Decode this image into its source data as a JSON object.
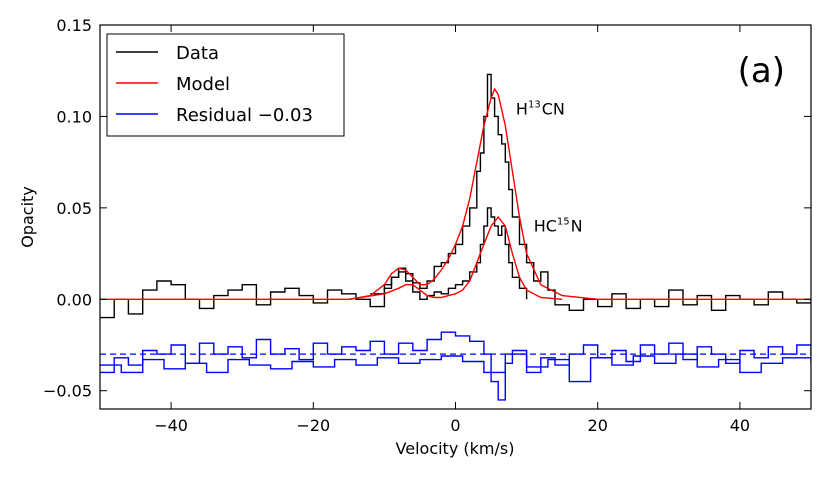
{
  "chart_data": {
    "type": "line",
    "xlabel": "Velocity (km/s)",
    "ylabel": "Opacity",
    "xlim": [
      -50,
      50
    ],
    "ylim": [
      -0.06,
      0.15
    ],
    "xticks": [
      -40,
      -20,
      0,
      20,
      40
    ],
    "xtick_labels": [
      "−40",
      "−20",
      "0",
      "20",
      "40"
    ],
    "yticks": [
      -0.05,
      0.0,
      0.05,
      0.1,
      0.15
    ],
    "ytick_labels": [
      "−0.05",
      "0.00",
      "0.05",
      "0.10",
      "0.15"
    ],
    "legend_position": "top-left",
    "grid": false,
    "panel_label": "(a)",
    "annotations": [
      {
        "main": "H",
        "sup": "13",
        "rest": "CN",
        "x": 8.5,
        "y": 0.101
      },
      {
        "main": "HC",
        "sup": "15",
        "rest": "N",
        "x": 11,
        "y": 0.037
      }
    ],
    "baseline": {
      "y": -0.03,
      "color": "#0000ff",
      "style": "dashed"
    },
    "series": [
      {
        "name": "Data",
        "color": "#000000",
        "style": "step",
        "x": [
          -50,
          -48,
          -46,
          -44,
          -42,
          -40,
          -38,
          -36,
          -34,
          -32,
          -30,
          -28,
          -26,
          -24,
          -22,
          -20,
          -18,
          -16,
          -14,
          -12,
          -10,
          -9,
          -8,
          -7,
          -6,
          -5,
          -4,
          -3,
          -2,
          -1,
          0,
          1,
          2,
          3,
          3.5,
          4,
          4.5,
          5,
          5.5,
          6,
          6.5,
          7,
          7.5,
          8,
          9,
          10,
          11,
          12,
          13,
          14,
          16,
          18,
          20,
          22,
          24,
          26,
          28,
          30,
          32,
          34,
          36,
          38,
          40,
          42,
          44,
          46,
          48,
          50
        ],
        "y": [
          -0.01,
          0.0,
          -0.008,
          0.005,
          0.01,
          0.008,
          0.0,
          -0.005,
          0.002,
          0.005,
          0.008,
          -0.003,
          0.004,
          0.006,
          0.002,
          -0.002,
          0.005,
          0.003,
          0.0,
          -0.004,
          0.006,
          0.012,
          0.017,
          0.014,
          0.009,
          0.006,
          0.01,
          0.018,
          0.02,
          0.025,
          0.03,
          0.04,
          0.05,
          0.07,
          0.08,
          0.1,
          0.123,
          0.11,
          0.1,
          0.09,
          0.085,
          0.075,
          0.06,
          0.045,
          0.03,
          0.02,
          0.01,
          0.015,
          0.005,
          -0.003,
          -0.006,
          0.0,
          -0.004,
          0.003,
          -0.005,
          0.0,
          -0.004,
          0.005,
          -0.003,
          0.002,
          -0.006,
          0.002,
          0.0,
          -0.003,
          0.004,
          0.0,
          -0.002,
          0.0
        ]
      },
      {
        "name": "Data",
        "color": "#000000",
        "style": "step",
        "x": [
          -12,
          -10,
          -9,
          -8,
          -7,
          -6,
          -5,
          -4,
          -3,
          -2,
          -1,
          0,
          1,
          2,
          3,
          3.5,
          4,
          4.5,
          5,
          5.5,
          6,
          6.5,
          7,
          7.5,
          8,
          9,
          10
        ],
        "y": [
          0.003,
          0.008,
          0.012,
          0.015,
          0.01,
          0.004,
          0.0,
          0.002,
          0.004,
          0.003,
          0.006,
          0.008,
          0.01,
          0.015,
          0.02,
          0.03,
          0.04,
          0.05,
          0.045,
          0.04,
          0.035,
          0.04,
          0.03,
          0.02,
          0.012,
          0.006,
          0.0
        ]
      },
      {
        "name": "Model",
        "color": "#ff0000",
        "style": "line",
        "x": [
          -50,
          -15,
          -12,
          -10,
          -9,
          -8,
          -7,
          -6,
          -5,
          -4,
          -3,
          -2,
          -1,
          0,
          1,
          2,
          3,
          4,
          5,
          5.5,
          6,
          7,
          8,
          9,
          10,
          12,
          15,
          20,
          50
        ],
        "y": [
          0.0,
          0.0,
          0.002,
          0.008,
          0.014,
          0.017,
          0.016,
          0.012,
          0.008,
          0.008,
          0.011,
          0.016,
          0.022,
          0.03,
          0.04,
          0.055,
          0.075,
          0.095,
          0.11,
          0.115,
          0.112,
          0.095,
          0.07,
          0.045,
          0.025,
          0.008,
          0.002,
          0.0,
          0.0
        ]
      },
      {
        "name": "Model",
        "color": "#ff0000",
        "style": "line",
        "x": [
          -15,
          -10,
          -8,
          -7,
          -6,
          -5,
          -4,
          -3,
          -2,
          -1,
          0,
          1,
          2,
          3,
          4,
          5,
          6,
          7,
          8,
          9,
          10,
          12,
          15
        ],
        "y": [
          0.0,
          0.003,
          0.006,
          0.008,
          0.008,
          0.005,
          0.002,
          0.001,
          0.001,
          0.002,
          0.003,
          0.005,
          0.01,
          0.02,
          0.03,
          0.04,
          0.045,
          0.04,
          0.025,
          0.012,
          0.005,
          0.001,
          0.0
        ]
      },
      {
        "name": "Residual −0.03",
        "color": "#0000ff",
        "style": "step",
        "x": [
          -50,
          -48,
          -46,
          -44,
          -42,
          -40,
          -38,
          -36,
          -34,
          -32,
          -30,
          -28,
          -26,
          -24,
          -22,
          -20,
          -18,
          -16,
          -14,
          -12,
          -10,
          -8,
          -6,
          -4,
          -2,
          0,
          2,
          4,
          5,
          6,
          7,
          8,
          10,
          12,
          14,
          16,
          18,
          20,
          22,
          24,
          26,
          28,
          30,
          32,
          34,
          36,
          38,
          40,
          42,
          44,
          46,
          48,
          50
        ],
        "y": [
          -0.04,
          -0.032,
          -0.036,
          -0.028,
          -0.03,
          -0.025,
          -0.035,
          -0.024,
          -0.03,
          -0.026,
          -0.032,
          -0.022,
          -0.03,
          -0.027,
          -0.033,
          -0.024,
          -0.03,
          -0.026,
          -0.028,
          -0.023,
          -0.03,
          -0.024,
          -0.028,
          -0.022,
          -0.018,
          -0.02,
          -0.023,
          -0.03,
          -0.045,
          -0.055,
          -0.035,
          -0.028,
          -0.04,
          -0.032,
          -0.036,
          -0.03,
          -0.025,
          -0.032,
          -0.028,
          -0.034,
          -0.025,
          -0.03,
          -0.024,
          -0.033,
          -0.026,
          -0.03,
          -0.035,
          -0.028,
          -0.032,
          -0.026,
          -0.03,
          -0.025,
          -0.03
        ]
      },
      {
        "name": "Residual −0.03",
        "color": "#0000ff",
        "style": "step",
        "x": [
          -50,
          -47,
          -44,
          -41,
          -38,
          -35,
          -32,
          -29,
          -26,
          -23,
          -20,
          -17,
          -14,
          -11,
          -8,
          -5,
          -2,
          1,
          4,
          7,
          10,
          13,
          16,
          19,
          22,
          25,
          28,
          31,
          34,
          37,
          40,
          43,
          46,
          50
        ],
        "y": [
          -0.036,
          -0.04,
          -0.033,
          -0.038,
          -0.035,
          -0.04,
          -0.033,
          -0.036,
          -0.038,
          -0.034,
          -0.037,
          -0.033,
          -0.036,
          -0.032,
          -0.035,
          -0.033,
          -0.031,
          -0.034,
          -0.04,
          -0.03,
          -0.037,
          -0.033,
          -0.045,
          -0.032,
          -0.036,
          -0.031,
          -0.035,
          -0.03,
          -0.037,
          -0.033,
          -0.04,
          -0.035,
          -0.032,
          -0.035
        ]
      }
    ],
    "legend": [
      {
        "label": "Data",
        "color": "#000000"
      },
      {
        "label": "Model",
        "color": "#ff0000"
      },
      {
        "label": "Residual −0.03",
        "color": "#0000ff"
      }
    ]
  }
}
